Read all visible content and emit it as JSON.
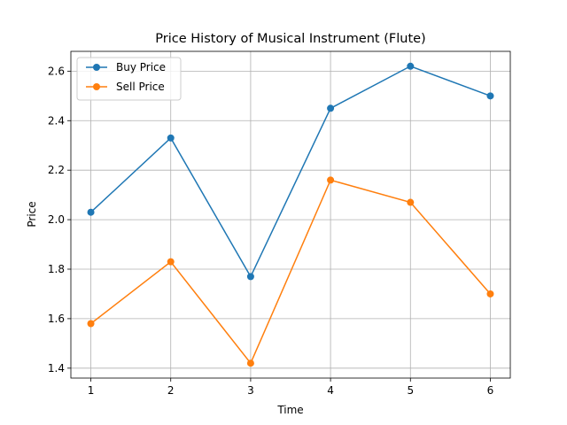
{
  "chart_data": {
    "type": "line",
    "title": "Price History of Musical Instrument (Flute)",
    "xlabel": "Time",
    "ylabel": "Price",
    "x": [
      1,
      2,
      3,
      4,
      5,
      6
    ],
    "xticks": [
      1,
      2,
      3,
      4,
      5,
      6
    ],
    "yticks": [
      1.4,
      1.6,
      1.8,
      2.0,
      2.2,
      2.4,
      2.6
    ],
    "xlim": [
      0.75,
      6.25
    ],
    "ylim": [
      1.36,
      2.68
    ],
    "grid": true,
    "legend_position": "upper-left",
    "series": [
      {
        "name": "Buy Price",
        "color": "#1f77b4",
        "marker": "circle",
        "values": [
          2.03,
          2.33,
          1.77,
          2.45,
          2.62,
          2.5
        ]
      },
      {
        "name": "Sell Price",
        "color": "#ff7f0e",
        "marker": "circle",
        "values": [
          1.58,
          1.83,
          1.42,
          2.16,
          2.07,
          1.7
        ]
      }
    ]
  }
}
